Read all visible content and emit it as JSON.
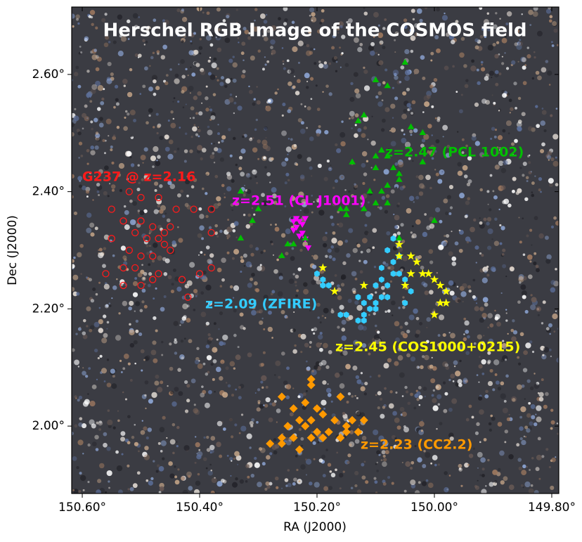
{
  "chart_data": {
    "type": "scatter",
    "title": "Herschel RGB Image of the COSMOS field",
    "xlabel": "RA (J2000)",
    "ylabel": "Dec (J2000)",
    "xlim": [
      150.618,
      149.788
    ],
    "ylim": [
      1.885,
      2.715
    ],
    "xticks": [
      {
        "value": 150.6,
        "label": "150.60°"
      },
      {
        "value": 150.4,
        "label": "150.40°"
      },
      {
        "value": 150.2,
        "label": "150.20°"
      },
      {
        "value": 150.0,
        "label": "150.00°"
      },
      {
        "value": 149.8,
        "label": "149.80°"
      }
    ],
    "yticks": [
      {
        "value": 2.0,
        "label": "2.00°"
      },
      {
        "value": 2.2,
        "label": "2.20°"
      },
      {
        "value": 2.4,
        "label": "2.40°"
      },
      {
        "value": 2.6,
        "label": "2.60°"
      }
    ],
    "annotations": [
      {
        "text": "G237 @ z=2.16",
        "color": "#ff1a1a"
      },
      {
        "text": "z=2.51 (CL J1001)",
        "color": "#ff00ff"
      },
      {
        "text": "z=2.47 (PCL 1002)",
        "color": "#00c000"
      },
      {
        "text": "z=2.09 (ZFIRE)",
        "color": "#33ccff"
      },
      {
        "text": "z=2.45 (COS1000+0215)",
        "color": "#ffff00"
      },
      {
        "text": "z=2.23 (CC2.2)",
        "color": "#ff9900"
      }
    ],
    "series": [
      {
        "color": "#ff1a1a",
        "marker": "open-circle",
        "x": [
          150.52,
          150.5,
          150.47,
          150.44,
          150.55,
          150.53,
          150.5,
          150.48,
          150.46,
          150.45,
          150.51,
          150.49,
          150.47,
          150.46,
          150.55,
          150.52,
          150.5,
          150.48,
          150.45,
          150.53,
          150.51,
          150.47,
          150.56,
          150.53,
          150.5,
          150.48,
          150.43,
          150.42,
          150.4,
          150.38,
          150.41,
          150.38,
          150.38
        ],
        "values": [
          2.4,
          2.39,
          2.39,
          2.37,
          2.37,
          2.35,
          2.35,
          2.34,
          2.33,
          2.34,
          2.33,
          2.32,
          2.32,
          2.31,
          2.32,
          2.3,
          2.29,
          2.29,
          2.3,
          2.27,
          2.27,
          2.26,
          2.26,
          2.24,
          2.24,
          2.25,
          2.25,
          2.22,
          2.26,
          2.27,
          2.37,
          2.37,
          2.33
        ]
      },
      {
        "color": "#ff00ff",
        "marker": "triangle-down",
        "x": [
          150.235,
          150.23,
          150.225,
          150.235,
          150.24,
          150.225,
          150.22,
          150.23,
          150.215,
          150.24,
          150.22
        ],
        "values": [
          2.355,
          2.35,
          2.345,
          2.34,
          2.335,
          2.33,
          2.32,
          2.325,
          2.305,
          2.35,
          2.355
        ]
      },
      {
        "color": "#00c000",
        "marker": "triangle-up",
        "x": [
          150.05,
          150.08,
          150.1,
          150.04,
          150.02,
          150.13,
          150.12,
          150.09,
          150.1,
          150.08,
          150.14,
          150.1,
          150.07,
          150.06,
          150.06,
          150.09,
          150.08,
          150.11,
          150.12,
          150.15,
          150.16,
          150.15,
          150.08,
          150.1,
          150.02,
          150.0,
          150.3,
          150.31,
          150.33,
          150.33,
          150.26,
          150.22,
          150.24,
          150.25,
          150.06
        ],
        "values": [
          2.62,
          2.58,
          2.59,
          2.51,
          2.5,
          2.52,
          2.53,
          2.47,
          2.46,
          2.46,
          2.45,
          2.44,
          2.44,
          2.43,
          2.42,
          2.4,
          2.41,
          2.4,
          2.37,
          2.37,
          2.37,
          2.36,
          2.38,
          2.38,
          2.45,
          2.35,
          2.37,
          2.35,
          2.32,
          2.4,
          2.29,
          2.32,
          2.31,
          2.31,
          2.32
        ]
      },
      {
        "color": "#33ccff",
        "marker": "hexagon",
        "x": [
          150.07,
          150.08,
          150.07,
          150.09,
          150.07,
          150.09,
          150.1,
          150.11,
          150.1,
          150.09,
          150.11,
          150.12,
          150.13,
          150.12,
          150.15,
          150.16,
          150.19,
          150.2,
          150.19,
          150.18,
          150.13,
          150.12,
          150.1,
          150.08,
          150.06,
          150.05,
          150.04,
          150.05,
          150.08,
          150.06
        ],
        "values": [
          2.32,
          2.3,
          2.28,
          2.27,
          2.26,
          2.25,
          2.24,
          2.22,
          2.21,
          2.22,
          2.2,
          2.19,
          2.18,
          2.18,
          2.19,
          2.19,
          2.24,
          2.26,
          2.25,
          2.24,
          2.22,
          2.21,
          2.2,
          2.22,
          2.26,
          2.25,
          2.23,
          2.21,
          2.24,
          2.29
        ]
      },
      {
        "color": "#ffff00",
        "marker": "star",
        "x": [
          150.06,
          150.04,
          150.03,
          150.02,
          150.01,
          150.0,
          149.99,
          149.98,
          149.98,
          149.99,
          150.0,
          150.04,
          150.06,
          150.05,
          150.12,
          150.19,
          150.17
        ],
        "values": [
          2.31,
          2.29,
          2.28,
          2.26,
          2.26,
          2.25,
          2.24,
          2.23,
          2.21,
          2.21,
          2.19,
          2.26,
          2.29,
          2.24,
          2.24,
          2.27,
          2.23
        ]
      },
      {
        "color": "#ff9900",
        "marker": "diamond",
        "x": [
          150.26,
          150.21,
          150.21,
          150.16,
          150.22,
          150.24,
          150.2,
          150.19,
          150.23,
          150.21,
          150.17,
          150.14,
          150.12,
          150.25,
          150.22,
          150.2,
          150.18,
          150.15,
          150.13,
          150.24,
          150.21,
          150.19,
          150.26,
          150.28,
          150.26,
          150.23,
          150.16,
          150.15
        ],
        "values": [
          2.05,
          2.08,
          2.07,
          2.05,
          2.04,
          2.03,
          2.03,
          2.02,
          2.01,
          2.01,
          2.01,
          2.01,
          2.01,
          2.0,
          2.0,
          1.99,
          1.99,
          2.0,
          1.99,
          1.98,
          1.98,
          1.98,
          1.98,
          1.97,
          1.97,
          1.96,
          1.98,
          1.99
        ]
      }
    ]
  }
}
